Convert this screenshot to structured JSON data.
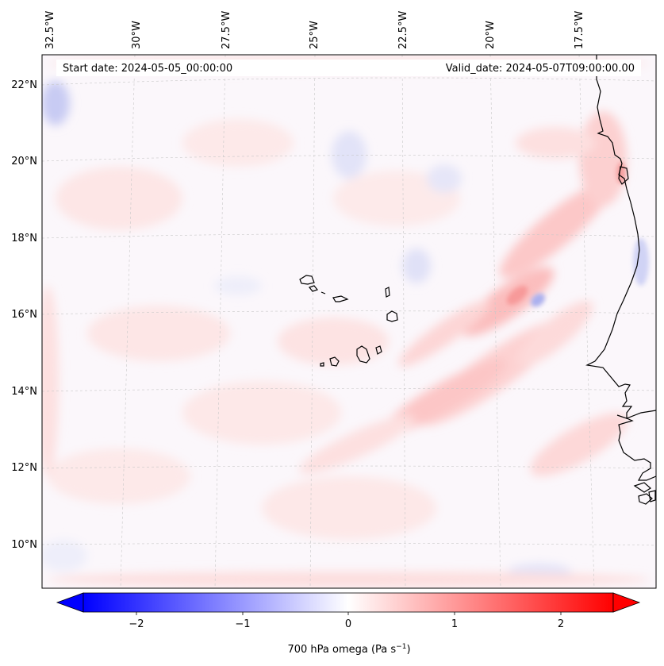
{
  "header": {
    "start_date": "Start date: 2024-05-05_00:00:00",
    "valid_date": "Valid_date: 2024-05-07T09:00:00.00"
  },
  "map": {
    "top_ticks": [
      "32.5°W",
      "30°W",
      "27.5°W",
      "25°W",
      "22.5°W",
      "20°W",
      "17.5°W"
    ],
    "left_ticks": [
      "22°N",
      "20°N",
      "18°N",
      "16°N",
      "14°N",
      "12°N",
      "10°N"
    ],
    "colors": {
      "positive": "#ff0000",
      "negative": "#0000ff",
      "neutral": "#ffffff",
      "coast": "#000000"
    }
  },
  "colorbar": {
    "ticks": [
      "−2",
      "−1",
      "0",
      "1",
      "2"
    ],
    "label": "700 hPa omega (Pa s",
    "label_exp": "−1",
    "label_close": ")",
    "range": [
      -2.6,
      2.6
    ]
  }
}
